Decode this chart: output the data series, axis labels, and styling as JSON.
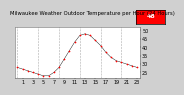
{
  "title": "Milwaukee Weather Outdoor Temperature per Hour (24 Hours)",
  "bg_color": "#d0d0d0",
  "plot_bg": "#ffffff",
  "grid_color": "#888888",
  "line_color": "#000000",
  "dot_color": "#ff0000",
  "hours": [
    0,
    1,
    2,
    3,
    4,
    5,
    6,
    7,
    8,
    9,
    10,
    11,
    12,
    13,
    14,
    15,
    16,
    17,
    18,
    19,
    20,
    21,
    22,
    23
  ],
  "temps": [
    28,
    27,
    26,
    25,
    24,
    23,
    23,
    25,
    28,
    33,
    38,
    43,
    47,
    48,
    47,
    44,
    41,
    37,
    34,
    32,
    31,
    30,
    29,
    28
  ],
  "ylim_min": 22,
  "ylim_max": 52,
  "current_temp": "48",
  "current_hour": 13,
  "highlight_color": "#ff0000",
  "highlight_text_color": "#ffffff",
  "tick_label_size": 3.5,
  "title_size": 3.8,
  "xtick_hours": [
    1,
    3,
    5,
    7,
    9,
    11,
    13,
    15,
    17,
    19,
    21,
    23
  ],
  "xtick_labels": [
    "1",
    "3",
    "5",
    "7",
    "9",
    "11",
    "13",
    "15",
    "17",
    "19",
    "21",
    "23"
  ],
  "ytick_vals": [
    25,
    30,
    35,
    40,
    45,
    50
  ],
  "ytick_labels": [
    "25",
    "30",
    "35",
    "40",
    "45",
    "50"
  ]
}
